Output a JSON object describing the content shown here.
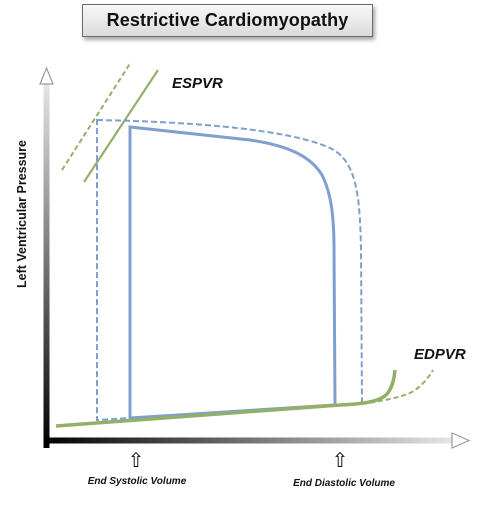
{
  "title": "Restrictive Cardiomyopathy",
  "y_axis_label": "Left Ventricular Pressure",
  "curve_labels": {
    "espvr": "ESPVR",
    "edpvr": "EDPVR"
  },
  "x_markers": {
    "end_systolic": "End Systolic Volume",
    "end_diastolic": "End Diastolic Volume",
    "marker_glyph": "⇧"
  },
  "colors": {
    "loop": "#7f9fcf",
    "pressure_relation": "#93b06a",
    "axis_gradient_start": "#e8e8e8",
    "axis_gradient_end": "#000000",
    "label_text": "#111111"
  }
}
